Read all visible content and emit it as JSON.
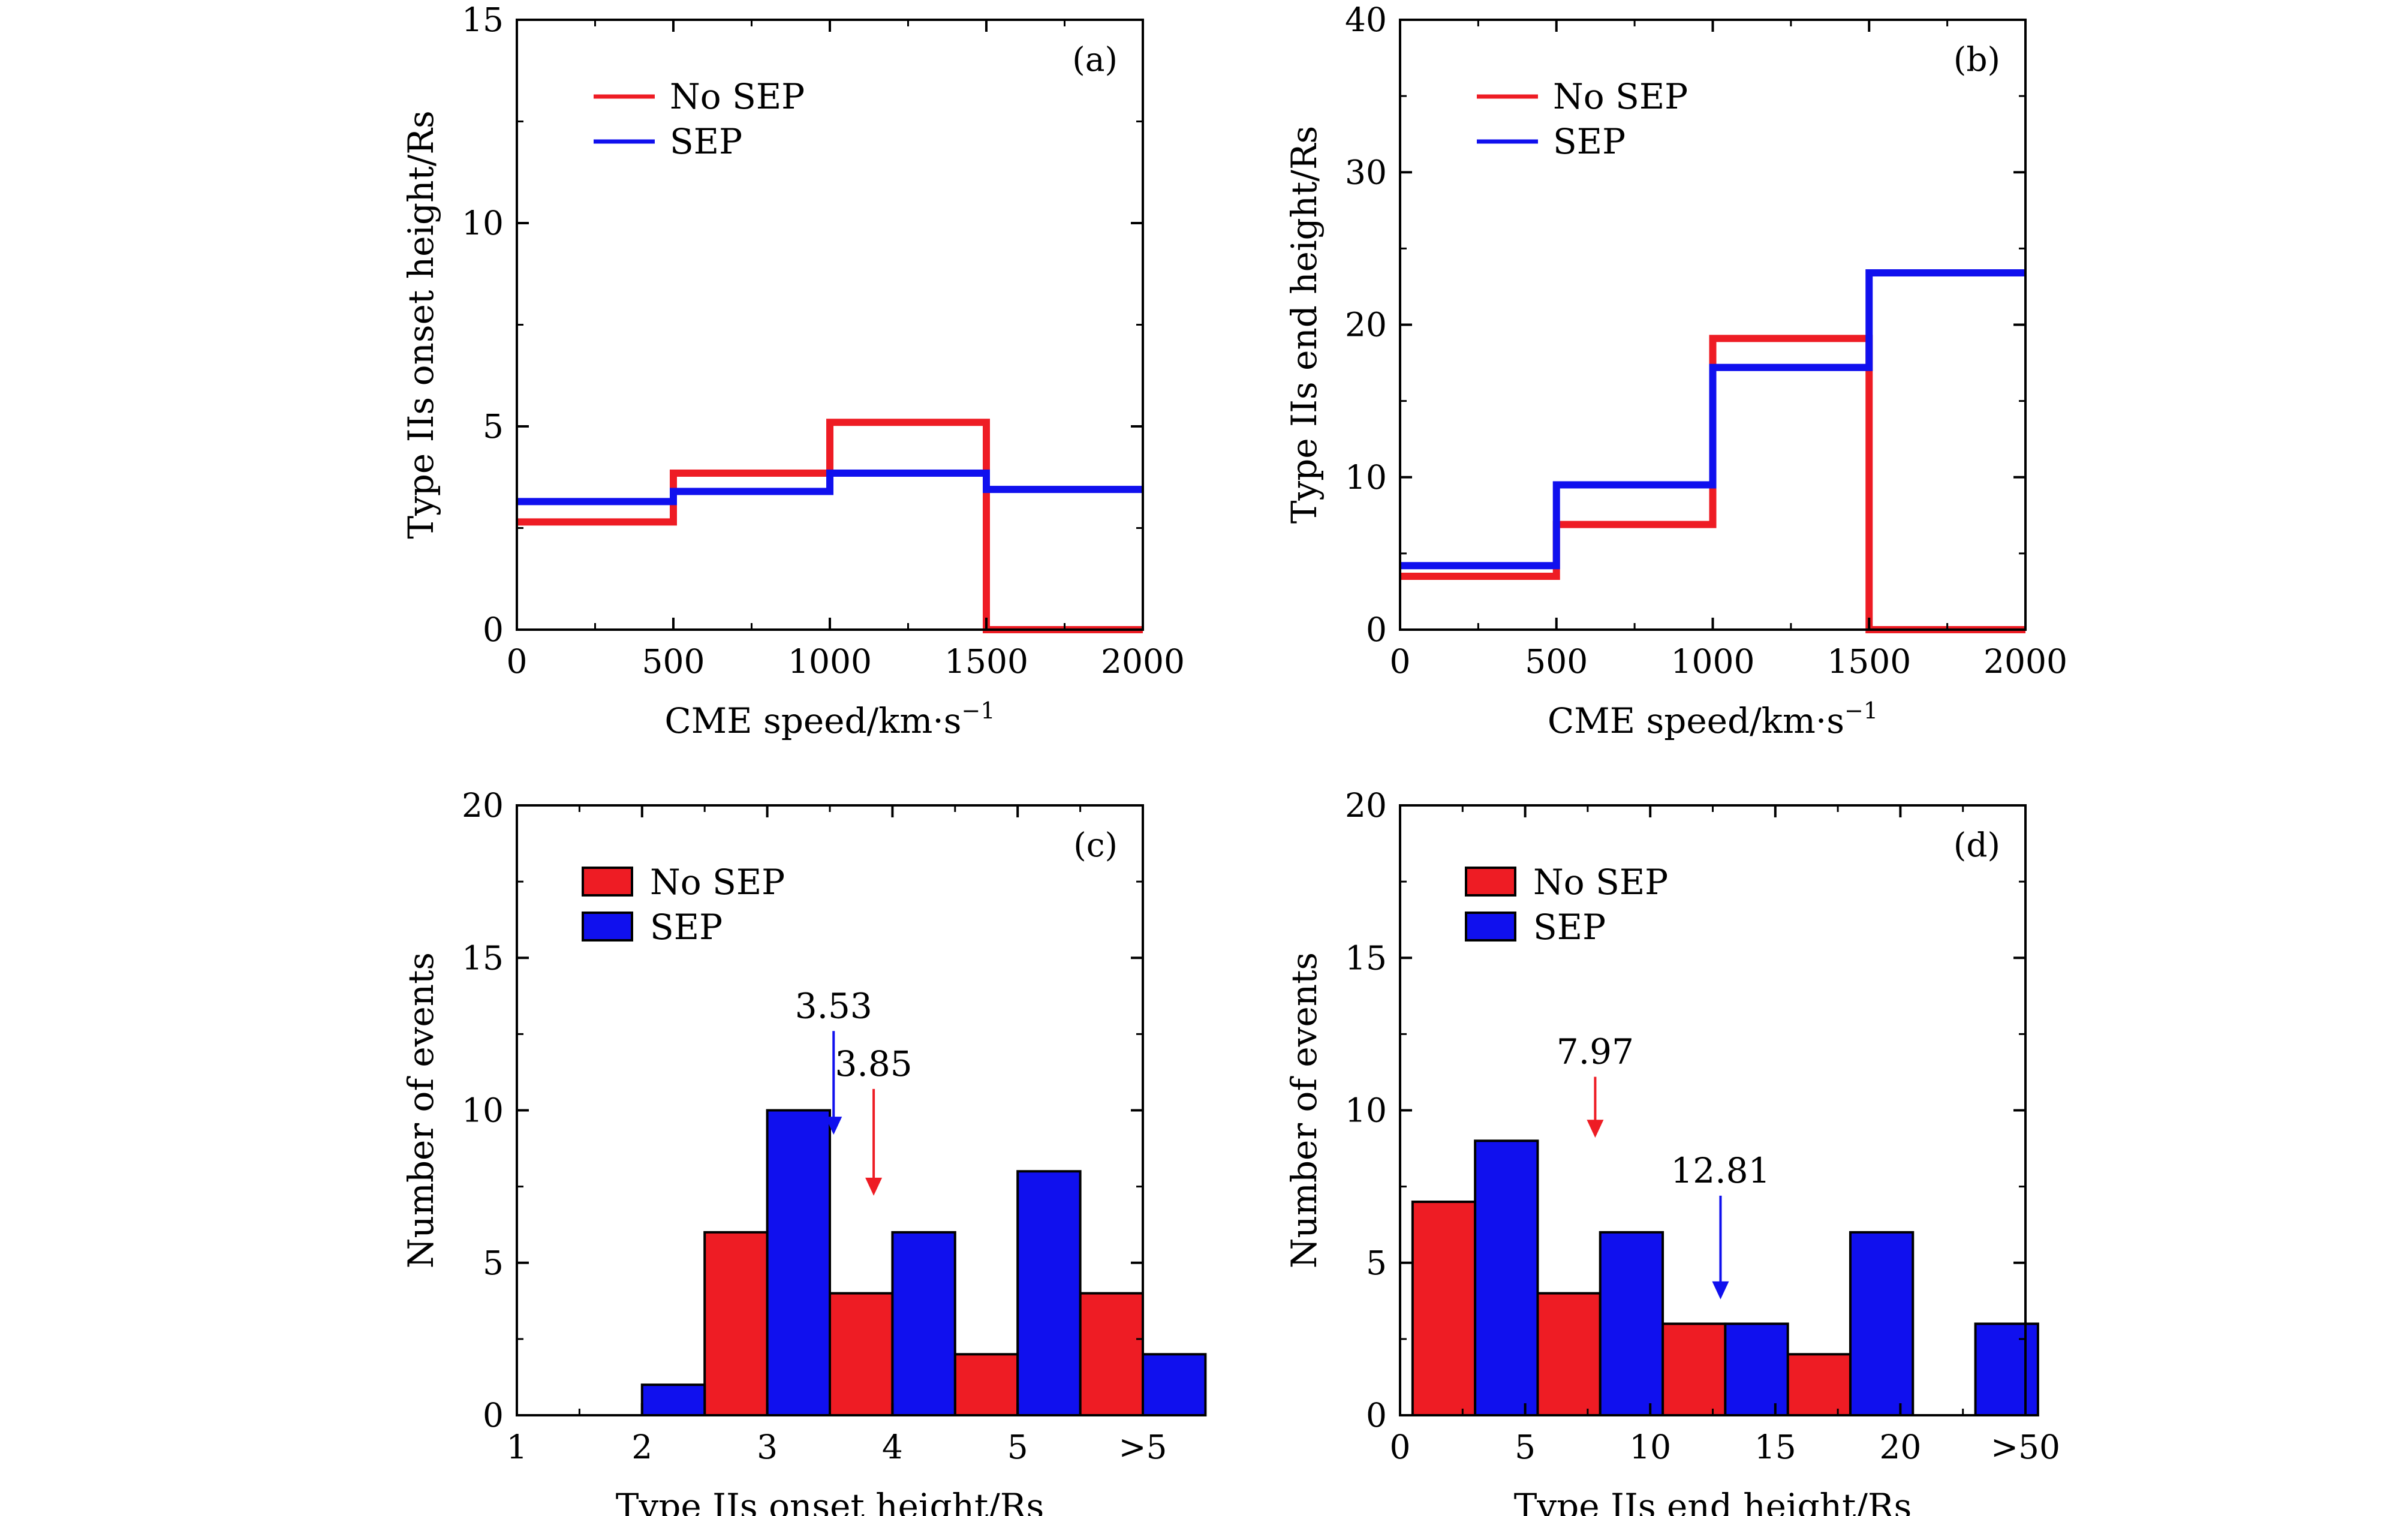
{
  "colors": {
    "no_sep": "#ee1c24",
    "sep": "#1010ee",
    "axis": "#000000"
  },
  "chart_data": [
    {
      "panel": "(a)",
      "type": "line",
      "style": "step",
      "xlabel": "CME speed/km·s",
      "xlabel_sup": "−1",
      "ylabel": "Type IIs onset height/Rs",
      "xlim": [
        0,
        2000
      ],
      "ylim": [
        0,
        15
      ],
      "xticks": [
        0,
        500,
        1000,
        1500,
        2000
      ],
      "xtick_labels": [
        "0",
        "500",
        "1000",
        "1500",
        "2000"
      ],
      "yticks": [
        0,
        5,
        10,
        15
      ],
      "ytick_labels": [
        "0",
        "5",
        "10",
        "15"
      ],
      "x_edges": [
        0,
        500,
        1000,
        1500,
        2000
      ],
      "legend_position": "top-left",
      "series": [
        {
          "name": "No SEP",
          "color": "#ee1c24",
          "values": [
            2.65,
            3.85,
            5.1,
            0
          ]
        },
        {
          "name": "SEP",
          "color": "#1010ee",
          "values": [
            3.15,
            3.4,
            3.85,
            3.45
          ]
        }
      ]
    },
    {
      "panel": "(b)",
      "type": "line",
      "style": "step",
      "xlabel": "CME speed/km·s",
      "xlabel_sup": "−1",
      "ylabel": "Type IIs end height/Rs",
      "xlim": [
        0,
        2000
      ],
      "ylim": [
        0,
        40
      ],
      "xticks": [
        0,
        500,
        1000,
        1500,
        2000
      ],
      "xtick_labels": [
        "0",
        "500",
        "1000",
        "1500",
        "2000"
      ],
      "yticks": [
        0,
        10,
        20,
        30,
        40
      ],
      "ytick_labels": [
        "0",
        "10",
        "20",
        "30",
        "40"
      ],
      "x_edges": [
        0,
        500,
        1000,
        1500,
        2000
      ],
      "legend_position": "top-left",
      "series": [
        {
          "name": "No SEP",
          "color": "#ee1c24",
          "values": [
            3.5,
            6.9,
            19.1,
            0
          ]
        },
        {
          "name": "SEP",
          "color": "#1010ee",
          "values": [
            4.2,
            9.5,
            17.2,
            23.4
          ]
        }
      ]
    },
    {
      "panel": "(c)",
      "type": "bar",
      "xlabel": "Type IIs onset height/Rs",
      "ylabel": "Number of events",
      "xlim": [
        1,
        6
      ],
      "ylim": [
        0,
        20
      ],
      "xticks": [
        1,
        2,
        3,
        4,
        5,
        6
      ],
      "xtick_labels": [
        "1",
        "2",
        "3",
        "4",
        "5",
        ">5"
      ],
      "yticks": [
        0,
        5,
        10,
        15,
        20
      ],
      "ytick_labels": [
        "0",
        "5",
        "10",
        "15",
        "20"
      ],
      "bin_starts": [
        1.5,
        2.5,
        3.5,
        4.5,
        5.5
      ],
      "bin_width": 1,
      "legend_position": "top-left",
      "series": [
        {
          "name": "No SEP",
          "color": "#ee1c24",
          "values": [
            0,
            6,
            4,
            2,
            4
          ]
        },
        {
          "name": "SEP",
          "color": "#1010ee",
          "values": [
            1,
            10,
            6,
            8,
            2
          ]
        }
      ],
      "annotations": [
        {
          "text": "3.53",
          "x": 3.53,
          "y_top": 12.6,
          "y_tip": 9.2,
          "color": "#1010ee"
        },
        {
          "text": "3.85",
          "x": 3.85,
          "y_top": 10.7,
          "y_tip": 7.2,
          "color": "#ee1c24"
        }
      ]
    },
    {
      "panel": "(d)",
      "type": "bar",
      "xlabel": "Type IIs end height/Rs",
      "ylabel": "Number of events",
      "xlim": [
        0,
        25
      ],
      "ylim": [
        0,
        20
      ],
      "xticks": [
        0,
        5,
        10,
        15,
        20,
        25
      ],
      "xtick_labels": [
        "0",
        "5",
        "10",
        "15",
        "20",
        ">50"
      ],
      "yticks": [
        0,
        5,
        10,
        15,
        20
      ],
      "ytick_labels": [
        "0",
        "5",
        "10",
        "15",
        "20"
      ],
      "bin_starts": [
        0.5,
        5.5,
        10.5,
        15.5,
        20.5
      ],
      "bin_width": 5,
      "legend_position": "top-left",
      "series": [
        {
          "name": "No SEP",
          "color": "#ee1c24",
          "values": [
            7,
            4,
            3,
            2,
            0
          ]
        },
        {
          "name": "SEP",
          "color": "#1010ee",
          "values": [
            9,
            6,
            3,
            6,
            3
          ]
        }
      ],
      "annotations": [
        {
          "text": "7.97",
          "x": 7.8,
          "y_top": 11.1,
          "y_tip": 9.1,
          "color": "#ee1c24"
        },
        {
          "text": "12.81",
          "x": 12.81,
          "y_top": 7.2,
          "y_tip": 3.8,
          "color": "#1010ee"
        }
      ]
    }
  ]
}
